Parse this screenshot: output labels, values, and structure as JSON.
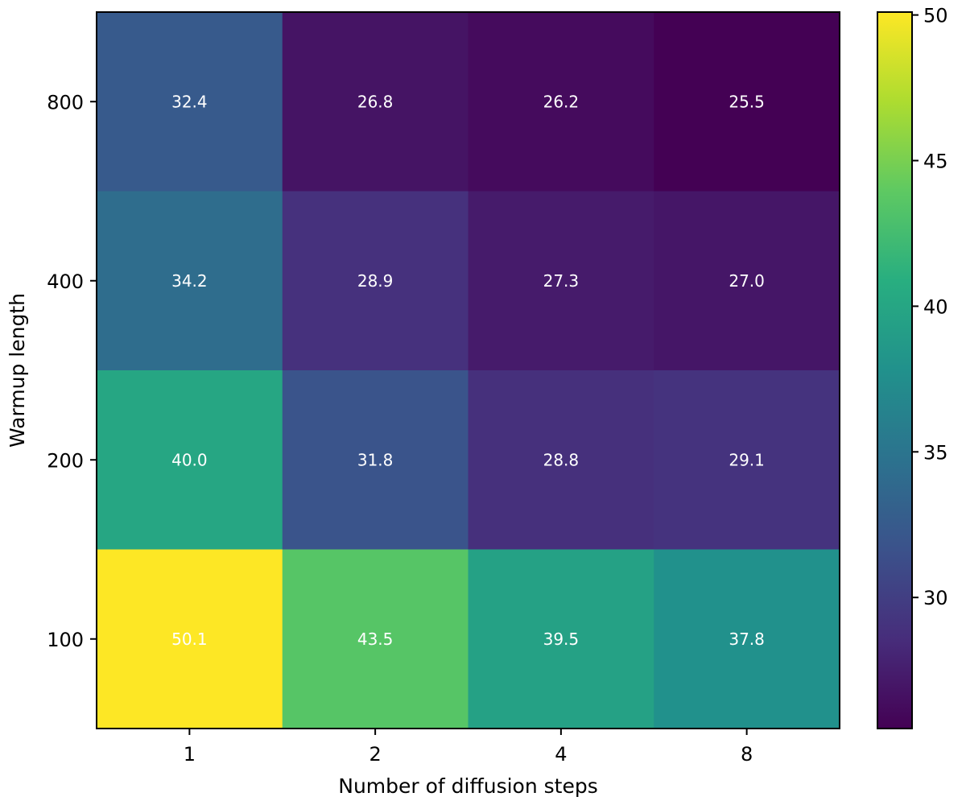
{
  "chart_data": {
    "type": "heatmap",
    "title": "",
    "xlabel": "Number of diffusion steps",
    "ylabel": "Warmup length",
    "x_categories": [
      "1",
      "2",
      "4",
      "8"
    ],
    "y_categories": [
      "800",
      "400",
      "200",
      "100"
    ],
    "values": [
      [
        32.4,
        26.8,
        26.2,
        25.5
      ],
      [
        34.2,
        28.9,
        27.3,
        27.0
      ],
      [
        40.0,
        31.8,
        28.8,
        29.1
      ],
      [
        50.1,
        43.5,
        39.5,
        37.8
      ]
    ],
    "value_labels": [
      [
        "32.4",
        "26.8",
        "26.2",
        "25.5"
      ],
      [
        "34.2",
        "28.9",
        "27.3",
        "27.0"
      ],
      [
        "40.0",
        "31.8",
        "28.8",
        "29.1"
      ],
      [
        "50.1",
        "43.5",
        "39.5",
        "37.8"
      ]
    ],
    "colormap": "viridis",
    "colorbar": {
      "range": [
        25.5,
        50.1
      ],
      "ticks": [
        30,
        35,
        40,
        45,
        50
      ],
      "tick_labels": [
        "30",
        "35",
        "40",
        "45",
        "50"
      ]
    },
    "annotation_color": "#ffffff",
    "grid": false
  }
}
